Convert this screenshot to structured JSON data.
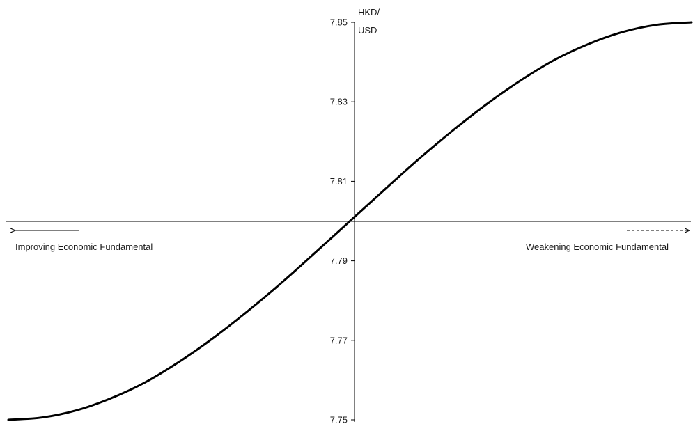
{
  "chart_data": {
    "type": "line",
    "title": "",
    "ylabel": [
      "HKD/",
      "USD"
    ],
    "ylim": [
      7.75,
      7.85
    ],
    "yticks": [
      {
        "value": 7.85,
        "label": "7.85"
      },
      {
        "value": 7.83,
        "label": "7.83"
      },
      {
        "value": 7.81,
        "label": "7.81"
      },
      {
        "value": 7.79,
        "label": "7.79"
      },
      {
        "value": 7.77,
        "label": "7.77"
      },
      {
        "value": 7.75,
        "label": "7.75"
      }
    ],
    "xlim": [
      -1,
      1
    ],
    "x_axis_crosses_y_at": 7.8,
    "annotations": {
      "left": "Improving Economic Fundamental",
      "right": "Weakening Economic Fundamental"
    },
    "series": [
      {
        "color": "#000000",
        "x": [
          -1,
          -0.9,
          -0.8,
          -0.7,
          -0.6,
          -0.5,
          -0.4,
          -0.3,
          -0.2,
          -0.1,
          0,
          0.1,
          0.2,
          0.3,
          0.4,
          0.5,
          0.6,
          0.7,
          0.8,
          0.9,
          1
        ],
        "y": [
          7.75,
          7.7506,
          7.7524,
          7.7554,
          7.7594,
          7.7646,
          7.7706,
          7.7773,
          7.7845,
          7.7922,
          7.8,
          7.8078,
          7.8155,
          7.8227,
          7.8294,
          7.8354,
          7.8406,
          7.8446,
          7.8476,
          7.8494,
          7.85
        ]
      }
    ],
    "grid": false,
    "legend": "none"
  }
}
